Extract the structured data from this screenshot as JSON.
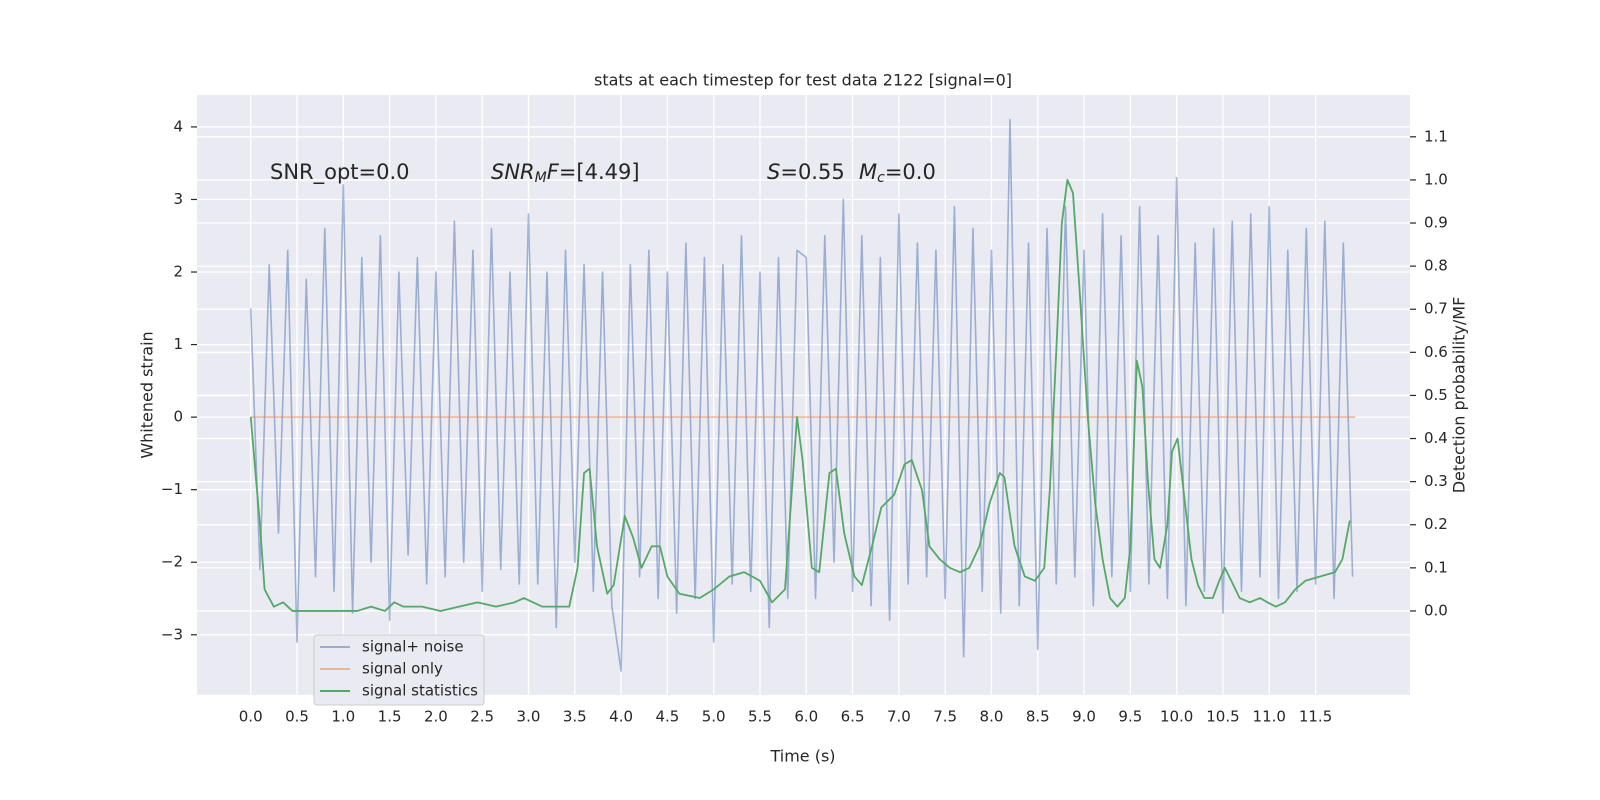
{
  "chart_data": {
    "type": "line",
    "title": "stats at each timestep for test data 2122 [signal=0]",
    "xlabel": "Time (s)",
    "ylabel": "Whitened strain",
    "y2label": "Detection probability/MF",
    "annotations": [
      [
        {
          "text": "SNR_opt=0.0"
        }
      ],
      [
        {
          "text": "SNR",
          "italic": true
        },
        {
          "text": "M",
          "italic": true,
          "sub": true
        },
        {
          "text": "F",
          "italic": true
        },
        {
          "text": "=[4.49]"
        }
      ],
      [
        {
          "text": "S",
          "italic": true
        },
        {
          "text": "=0.55"
        }
      ],
      [
        {
          "text": "M",
          "italic": true
        },
        {
          "text": "c",
          "italic": true,
          "sub": true
        },
        {
          "text": "=0.0"
        }
      ]
    ],
    "grid": true,
    "legend": "lower left",
    "xlim": [
      -0.58,
      12.52
    ],
    "ylim": [
      -3.83,
      4.44
    ],
    "y2lim": [
      -0.195,
      1.197
    ],
    "xticks": [
      {
        "value": 0,
        "label": "0.0"
      },
      {
        "value": 0.5,
        "label": "0.5"
      },
      {
        "value": 1,
        "label": "1.0"
      },
      {
        "value": 1.5,
        "label": "1.5"
      },
      {
        "value": 2,
        "label": "2.0"
      },
      {
        "value": 2.5,
        "label": "2.5"
      },
      {
        "value": 3,
        "label": "3.0"
      },
      {
        "value": 3.5,
        "label": "3.5"
      },
      {
        "value": 4,
        "label": "4.0"
      },
      {
        "value": 4.5,
        "label": "4.5"
      },
      {
        "value": 5,
        "label": "5.0"
      },
      {
        "value": 5.5,
        "label": "5.5"
      },
      {
        "value": 6,
        "label": "6.0"
      },
      {
        "value": 6.5,
        "label": "6.5"
      },
      {
        "value": 7,
        "label": "7.0"
      },
      {
        "value": 7.5,
        "label": "7.5"
      },
      {
        "value": 8,
        "label": "8.0"
      },
      {
        "value": 8.5,
        "label": "8.5"
      },
      {
        "value": 9,
        "label": "9.0"
      },
      {
        "value": 9.5,
        "label": "9.5"
      },
      {
        "value": 10,
        "label": "10.0"
      },
      {
        "value": 10.5,
        "label": "10.5"
      },
      {
        "value": 11,
        "label": "11.0"
      },
      {
        "value": 11.5,
        "label": "11.5"
      }
    ],
    "yticks": [
      {
        "value": -3,
        "label": "−3"
      },
      {
        "value": -2,
        "label": "−2"
      },
      {
        "value": -1,
        "label": "−1"
      },
      0,
      1,
      2,
      3,
      4
    ],
    "y2ticks": [
      {
        "value": 0,
        "label": "0.0"
      },
      {
        "value": 0.1,
        "label": "0.1"
      },
      {
        "value": 0.2,
        "label": "0.2"
      },
      {
        "value": 0.3,
        "label": "0.3"
      },
      {
        "value": 0.4,
        "label": "0.4"
      },
      {
        "value": 0.5,
        "label": "0.5"
      },
      {
        "value": 0.6,
        "label": "0.6"
      },
      {
        "value": 0.7,
        "label": "0.7"
      },
      {
        "value": 0.8,
        "label": "0.8"
      },
      {
        "value": 0.9,
        "label": "0.9"
      },
      {
        "value": 1,
        "label": "1.0"
      },
      {
        "value": 1.1,
        "label": "1.1"
      }
    ],
    "series": [
      {
        "name": "signal+ noise",
        "color": "#4c72b0",
        "opacity": 0.5,
        "axis": "y",
        "x": [
          0,
          0.1,
          0.2,
          0.3,
          0.4,
          0.5,
          0.6,
          0.7,
          0.8,
          0.9,
          1,
          1.1,
          1.2,
          1.3,
          1.4,
          1.5,
          1.6,
          1.7,
          1.8,
          1.9,
          2,
          2.1,
          2.2,
          2.3,
          2.4,
          2.5,
          2.6,
          2.7,
          2.8,
          2.9,
          3,
          3.1,
          3.2,
          3.3,
          3.4,
          3.5,
          3.6,
          3.7,
          3.8,
          3.9,
          4,
          4.1,
          4.2,
          4.3,
          4.4,
          4.5,
          4.6,
          4.7,
          4.8,
          4.9,
          5,
          5.1,
          5.2,
          5.3,
          5.4,
          5.5,
          5.6,
          5.7,
          5.8,
          5.9,
          6,
          6.1,
          6.2,
          6.3,
          6.4,
          6.5,
          6.6,
          6.7,
          6.8,
          6.9,
          7,
          7.1,
          7.2,
          7.3,
          7.4,
          7.5,
          7.6,
          7.7,
          7.8,
          7.9,
          8,
          8.1,
          8.2,
          8.3,
          8.4,
          8.5,
          8.6,
          8.7,
          8.8,
          8.9,
          9,
          9.1,
          9.2,
          9.3,
          9.4,
          9.5,
          9.6,
          9.7,
          9.8,
          9.9,
          10,
          10.1,
          10.2,
          10.3,
          10.4,
          10.5,
          10.6,
          10.7,
          10.8,
          10.9,
          11,
          11.1,
          11.2,
          11.3,
          11.4,
          11.5,
          11.6,
          11.7,
          11.8,
          11.9
        ],
        "values": [
          1.5,
          -2.1,
          2.1,
          -1.6,
          2.3,
          -3.1,
          1.9,
          -2.2,
          2.6,
          -2.4,
          3.2,
          -2.7,
          2.2,
          -2.0,
          2.5,
          -2.8,
          2.0,
          -1.9,
          2.2,
          -2.3,
          2.0,
          -2.2,
          2.7,
          -2.0,
          2.3,
          -2.4,
          2.6,
          -2.1,
          2.0,
          -2.3,
          2.8,
          -2.3,
          2.0,
          -2.9,
          2.3,
          -2.0,
          2.1,
          -2.4,
          2.0,
          -2.6,
          -3.5,
          2.1,
          -2.2,
          2.3,
          -2.5,
          2.0,
          -2.7,
          2.4,
          -2.5,
          2.2,
          -3.1,
          2.1,
          -2.3,
          2.5,
          -2.4,
          2.0,
          -2.9,
          2.2,
          -2.5,
          2.3,
          2.2,
          -2.5,
          2.5,
          -2.0,
          3.0,
          -2.4,
          2.5,
          -2.6,
          2.2,
          -2.8,
          2.8,
          -2.3,
          2.4,
          -2.2,
          2.3,
          -2.5,
          2.9,
          -3.3,
          2.6,
          -2.4,
          2.3,
          -2.7,
          4.1,
          -2.6,
          2.4,
          -3.2,
          2.6,
          -2.3,
          2.9,
          -2.2,
          2.3,
          -2.6,
          2.8,
          -2.2,
          2.5,
          -2.4,
          2.9,
          -2.3,
          2.5,
          -2.5,
          3.3,
          -2.6,
          2.4,
          -2.4,
          2.6,
          -2.7,
          2.7,
          -2.4,
          2.8,
          -2.2,
          2.9,
          -2.5,
          2.3,
          -2.4,
          2.6,
          -2.3,
          2.7,
          -2.5,
          2.4,
          -2.2
        ]
      },
      {
        "name": "signal only",
        "color": "#dd8452",
        "opacity": 0.5,
        "axis": "y",
        "x": [
          0,
          11.93
        ],
        "values": [
          0,
          0
        ]
      },
      {
        "name": "signal statistics",
        "color": "#55a868",
        "opacity": 1,
        "axis": "y2",
        "x": [
          0,
          0.1,
          0.15,
          0.25,
          0.35,
          0.45,
          0.6,
          0.8,
          1.0,
          1.15,
          1.3,
          1.45,
          1.55,
          1.65,
          1.85,
          2.05,
          2.25,
          2.45,
          2.65,
          2.85,
          2.95,
          3.15,
          3.35,
          3.44,
          3.53,
          3.6,
          3.66,
          3.74,
          3.85,
          3.92,
          4.04,
          4.13,
          4.22,
          4.33,
          4.42,
          4.5,
          4.63,
          4.85,
          5.0,
          5.17,
          5.33,
          5.5,
          5.63,
          5.77,
          5.9,
          5.96,
          6.06,
          6.14,
          6.25,
          6.32,
          6.41,
          6.52,
          6.6,
          6.71,
          6.81,
          6.95,
          7.06,
          7.14,
          7.25,
          7.33,
          7.44,
          7.55,
          7.66,
          7.76,
          7.87,
          7.98,
          8.09,
          8.14,
          8.25,
          8.36,
          8.47,
          8.57,
          8.63,
          8.71,
          8.76,
          8.82,
          8.88,
          8.95,
          9.04,
          9.12,
          9.2,
          9.28,
          9.36,
          9.44,
          9.5,
          9.57,
          9.63,
          9.69,
          9.76,
          9.82,
          9.9,
          9.95,
          10.01,
          10.09,
          10.16,
          10.23,
          10.3,
          10.39,
          10.46,
          10.52,
          10.59,
          10.68,
          10.79,
          10.9,
          10.98,
          11.07,
          11.17,
          11.28,
          11.39,
          11.55,
          11.71,
          11.79,
          11.87
        ],
        "values": [
          0.45,
          0.2,
          0.05,
          0.01,
          0.02,
          0.0,
          0.0,
          0.0,
          0.0,
          0.0,
          0.01,
          0.0,
          0.02,
          0.01,
          0.01,
          0.0,
          0.01,
          0.02,
          0.01,
          0.02,
          0.03,
          0.01,
          0.01,
          0.01,
          0.1,
          0.32,
          0.33,
          0.15,
          0.04,
          0.06,
          0.22,
          0.17,
          0.1,
          0.15,
          0.15,
          0.08,
          0.04,
          0.03,
          0.05,
          0.08,
          0.09,
          0.07,
          0.02,
          0.05,
          0.45,
          0.35,
          0.1,
          0.09,
          0.32,
          0.33,
          0.18,
          0.08,
          0.06,
          0.15,
          0.24,
          0.27,
          0.34,
          0.35,
          0.28,
          0.15,
          0.12,
          0.1,
          0.09,
          0.1,
          0.15,
          0.25,
          0.32,
          0.31,
          0.15,
          0.08,
          0.07,
          0.1,
          0.28,
          0.65,
          0.9,
          1.0,
          0.97,
          0.75,
          0.45,
          0.25,
          0.12,
          0.03,
          0.01,
          0.03,
          0.15,
          0.58,
          0.52,
          0.3,
          0.12,
          0.1,
          0.2,
          0.37,
          0.4,
          0.25,
          0.12,
          0.06,
          0.03,
          0.03,
          0.07,
          0.1,
          0.07,
          0.03,
          0.02,
          0.03,
          0.02,
          0.01,
          0.02,
          0.05,
          0.07,
          0.08,
          0.09,
          0.12,
          0.21
        ]
      }
    ]
  }
}
